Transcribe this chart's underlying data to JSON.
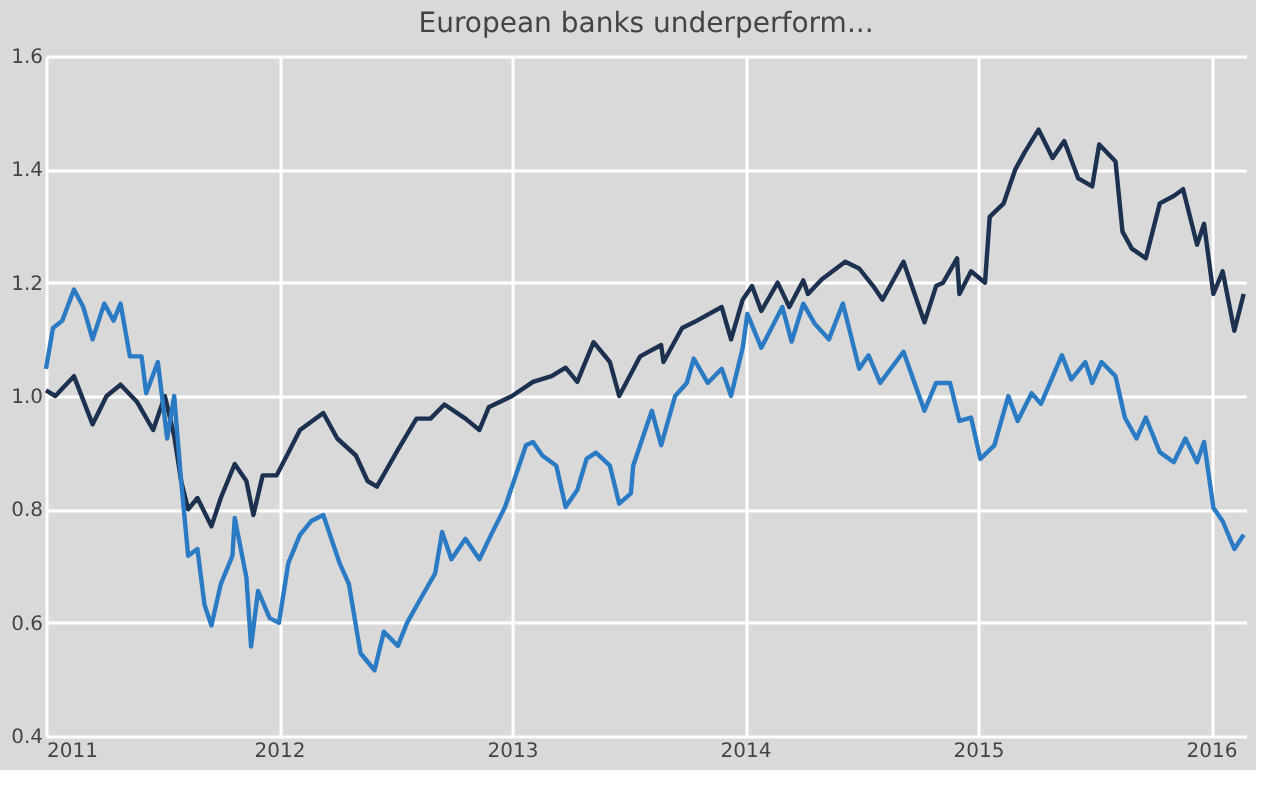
{
  "chart_data": {
    "type": "line",
    "title": "European banks underperform...",
    "xlim": [
      2011,
      2016.15
    ],
    "xticks": [
      2011,
      2012,
      2013,
      2014,
      2015,
      2016
    ],
    "ylim": [
      0.4,
      1.6
    ],
    "yticks": [
      0.4,
      0.6,
      0.8,
      {
        "value": 1.0,
        "label": "1.0"
      },
      1.2,
      1.4,
      1.6
    ],
    "grid": true,
    "legend": false,
    "marker": "none",
    "line_style": "solid",
    "series": [
      {
        "color": "#1c3150",
        "x": [
          2011.0,
          2011.04,
          2011.12,
          2011.2,
          2011.26,
          2011.32,
          2011.39,
          2011.46,
          2011.51,
          2011.55,
          2011.58,
          2011.61,
          2011.65,
          2011.71,
          2011.75,
          2011.81,
          2011.86,
          2011.89,
          2011.93,
          2011.99,
          2012.04,
          2012.09,
          2012.19,
          2012.25,
          2012.33,
          2012.38,
          2012.42,
          2012.51,
          2012.59,
          2012.65,
          2012.71,
          2012.8,
          2012.86,
          2012.9,
          2013.0,
          2013.09,
          2013.17,
          2013.23,
          2013.28,
          2013.35,
          2013.42,
          2013.46,
          2013.55,
          2013.64,
          2013.65,
          2013.73,
          2013.78,
          2013.9,
          2013.94,
          2013.99,
          2014.03,
          2014.07,
          2014.14,
          2014.19,
          2014.25,
          2014.27,
          2014.33,
          2014.43,
          2014.49,
          2014.55,
          2014.59,
          2014.68,
          2014.77,
          2014.82,
          2014.85,
          2014.91,
          2014.92,
          2014.97,
          2015.03,
          2015.05,
          2015.11,
          2015.16,
          2015.2,
          2015.26,
          2015.32,
          2015.37,
          2015.43,
          2015.49,
          2015.52,
          2015.59,
          2015.62,
          2015.66,
          2015.72,
          2015.78,
          2015.84,
          2015.88,
          2015.94,
          2015.97,
          2016.01,
          2016.05,
          2016.1,
          2016.14
        ],
        "values": [
          1.01,
          1.0,
          1.035,
          0.95,
          1.0,
          1.02,
          0.99,
          0.94,
          1.0,
          0.93,
          0.85,
          0.8,
          0.82,
          0.77,
          0.82,
          0.88,
          0.85,
          0.79,
          0.86,
          0.86,
          0.9,
          0.94,
          0.97,
          0.925,
          0.895,
          0.85,
          0.84,
          0.905,
          0.96,
          0.96,
          0.985,
          0.96,
          0.94,
          0.98,
          1.0,
          1.025,
          1.035,
          1.05,
          1.025,
          1.095,
          1.06,
          1.0,
          1.07,
          1.09,
          1.06,
          1.12,
          1.13,
          1.157,
          1.1,
          1.17,
          1.194,
          1.15,
          1.2,
          1.157,
          1.204,
          1.18,
          1.206,
          1.237,
          1.225,
          1.194,
          1.17,
          1.237,
          1.13,
          1.194,
          1.2,
          1.243,
          1.18,
          1.22,
          1.2,
          1.316,
          1.34,
          1.4,
          1.43,
          1.47,
          1.42,
          1.45,
          1.384,
          1.37,
          1.444,
          1.414,
          1.29,
          1.26,
          1.243,
          1.34,
          1.353,
          1.365,
          1.267,
          1.304,
          1.18,
          1.22,
          1.115,
          1.18
        ]
      },
      {
        "color": "#2a7bc4",
        "x": [
          2011.0,
          2011.03,
          2011.07,
          2011.12,
          2011.16,
          2011.2,
          2011.25,
          2011.29,
          2011.32,
          2011.36,
          2011.41,
          2011.43,
          2011.48,
          2011.52,
          2011.55,
          2011.58,
          2011.61,
          2011.65,
          2011.68,
          2011.71,
          2011.75,
          2011.8,
          2011.81,
          2011.86,
          2011.88,
          2011.91,
          2011.96,
          2012.0,
          2012.04,
          2012.09,
          2012.14,
          2012.19,
          2012.26,
          2012.3,
          2012.35,
          2012.41,
          2012.45,
          2012.51,
          2012.55,
          2012.61,
          2012.67,
          2012.7,
          2012.74,
          2012.8,
          2012.86,
          2012.91,
          2012.97,
          2013.06,
          2013.09,
          2013.13,
          2013.19,
          2013.23,
          2013.28,
          2013.32,
          2013.36,
          2013.42,
          2013.46,
          2013.51,
          2013.52,
          2013.6,
          2013.64,
          2013.7,
          2013.75,
          2013.78,
          2013.84,
          2013.9,
          2013.94,
          2013.99,
          2014.01,
          2014.07,
          2014.16,
          2014.2,
          2014.25,
          2014.3,
          2014.36,
          2014.42,
          2014.49,
          2014.53,
          2014.58,
          2014.68,
          2014.77,
          2014.82,
          2014.88,
          2014.92,
          2014.97,
          2015.01,
          2015.07,
          2015.13,
          2015.17,
          2015.23,
          2015.27,
          2015.36,
          2015.4,
          2015.46,
          2015.49,
          2015.53,
          2015.59,
          2015.63,
          2015.68,
          2015.72,
          2015.78,
          2015.84,
          2015.89,
          2015.94,
          2015.97,
          2016.01,
          2016.05,
          2016.1,
          2016.14
        ],
        "values": [
          1.048,
          1.12,
          1.133,
          1.188,
          1.157,
          1.1,
          1.163,
          1.133,
          1.163,
          1.07,
          1.07,
          1.005,
          1.06,
          0.925,
          1.0,
          0.85,
          0.718,
          0.73,
          0.632,
          0.595,
          0.668,
          0.718,
          0.785,
          0.68,
          0.558,
          0.656,
          0.608,
          0.6,
          0.705,
          0.755,
          0.78,
          0.79,
          0.705,
          0.668,
          0.546,
          0.516,
          0.584,
          0.559,
          0.6,
          0.644,
          0.687,
          0.76,
          0.712,
          0.748,
          0.712,
          0.755,
          0.804,
          0.913,
          0.919,
          0.895,
          0.877,
          0.804,
          0.834,
          0.889,
          0.9,
          0.877,
          0.81,
          0.828,
          0.877,
          0.974,
          0.913,
          1.0,
          1.023,
          1.066,
          1.023,
          1.048,
          1.0,
          1.085,
          1.145,
          1.085,
          1.157,
          1.096,
          1.163,
          1.127,
          1.1,
          1.163,
          1.048,
          1.072,
          1.023,
          1.078,
          0.974,
          1.023,
          1.023,
          0.956,
          0.962,
          0.889,
          0.913,
          1.0,
          0.956,
          1.005,
          0.986,
          1.072,
          1.029,
          1.06,
          1.023,
          1.06,
          1.035,
          0.962,
          0.925,
          0.962,
          0.901,
          0.883,
          0.925,
          0.883,
          0.919,
          0.803,
          0.779,
          0.73,
          0.755
        ]
      }
    ]
  }
}
